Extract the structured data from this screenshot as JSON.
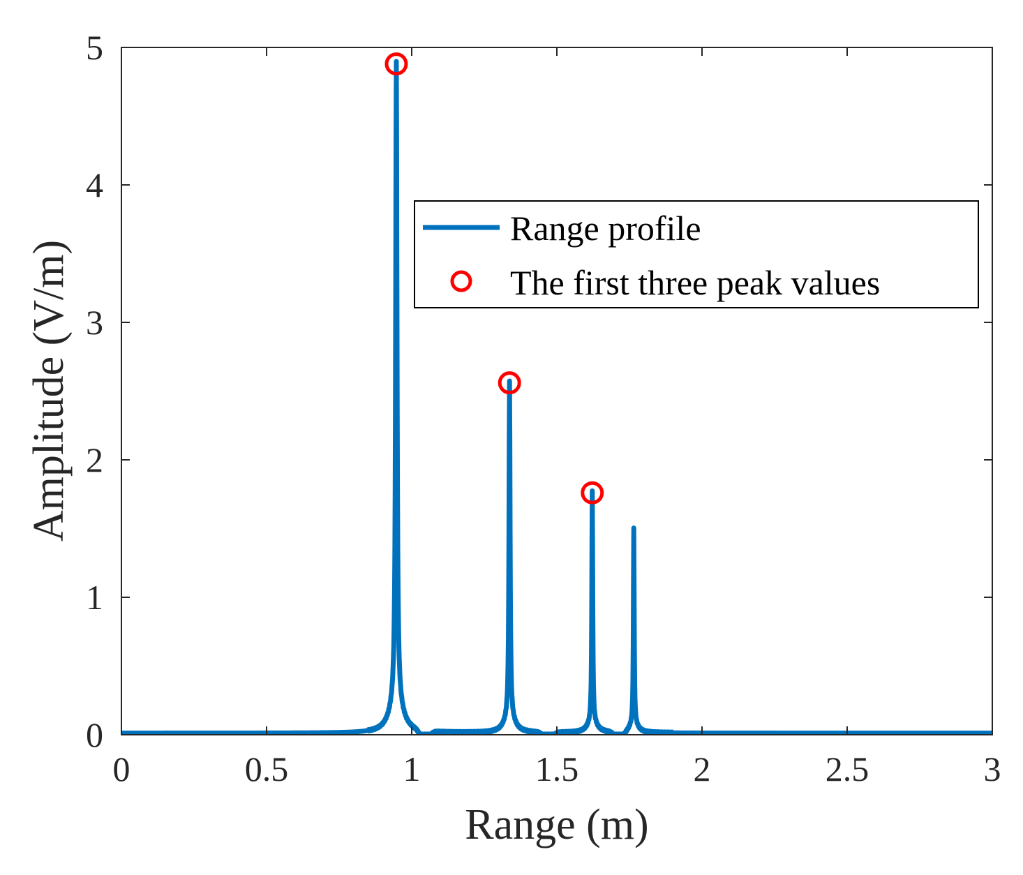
{
  "chart_data": {
    "type": "line",
    "xlabel": "Range (m)",
    "ylabel": "Amplitude (V/m)",
    "xlim": [
      0,
      3
    ],
    "ylim": [
      0,
      5
    ],
    "xticks": [
      0,
      0.5,
      1,
      1.5,
      2,
      2.5,
      3
    ],
    "xtick_labels": [
      "0",
      "0.5",
      "1",
      "1.5",
      "2",
      "2.5",
      "3"
    ],
    "yticks": [
      0,
      1,
      2,
      3,
      4,
      5
    ],
    "ytick_labels": [
      "0",
      "1",
      "2",
      "3",
      "4",
      "5"
    ],
    "grid": false,
    "legend_position": "upper-right",
    "series": [
      {
        "name": "Range profile",
        "style": "line",
        "color": "#0072BD",
        "peaks": [
          {
            "x": 0.947,
            "amp": 4.88,
            "gamma": 0.0028,
            "gamma_tail": 0.025,
            "tail_frac": 0.05
          },
          {
            "x": 1.337,
            "amp": 2.56,
            "gamma": 0.0022,
            "gamma_tail": 0.02,
            "tail_frac": 0.05
          },
          {
            "x": 1.622,
            "amp": 1.76,
            "gamma": 0.0018,
            "gamma_tail": 0.018,
            "tail_frac": 0.05
          },
          {
            "x": 1.765,
            "amp": 1.49,
            "gamma": 0.0016,
            "gamma_tail": 0.016,
            "tail_frac": 0.05
          }
        ],
        "dips": [
          {
            "x": 1.045,
            "depth": 0.08
          },
          {
            "x": 1.47,
            "depth": 0.06
          },
          {
            "x": 1.715,
            "depth": 0.06
          }
        ]
      },
      {
        "name": "The first three peak values",
        "style": "marker",
        "marker": "circle",
        "color": "#FF0000",
        "x": [
          0.947,
          1.337,
          1.622
        ],
        "y": [
          4.88,
          2.56,
          1.76
        ]
      }
    ]
  }
}
